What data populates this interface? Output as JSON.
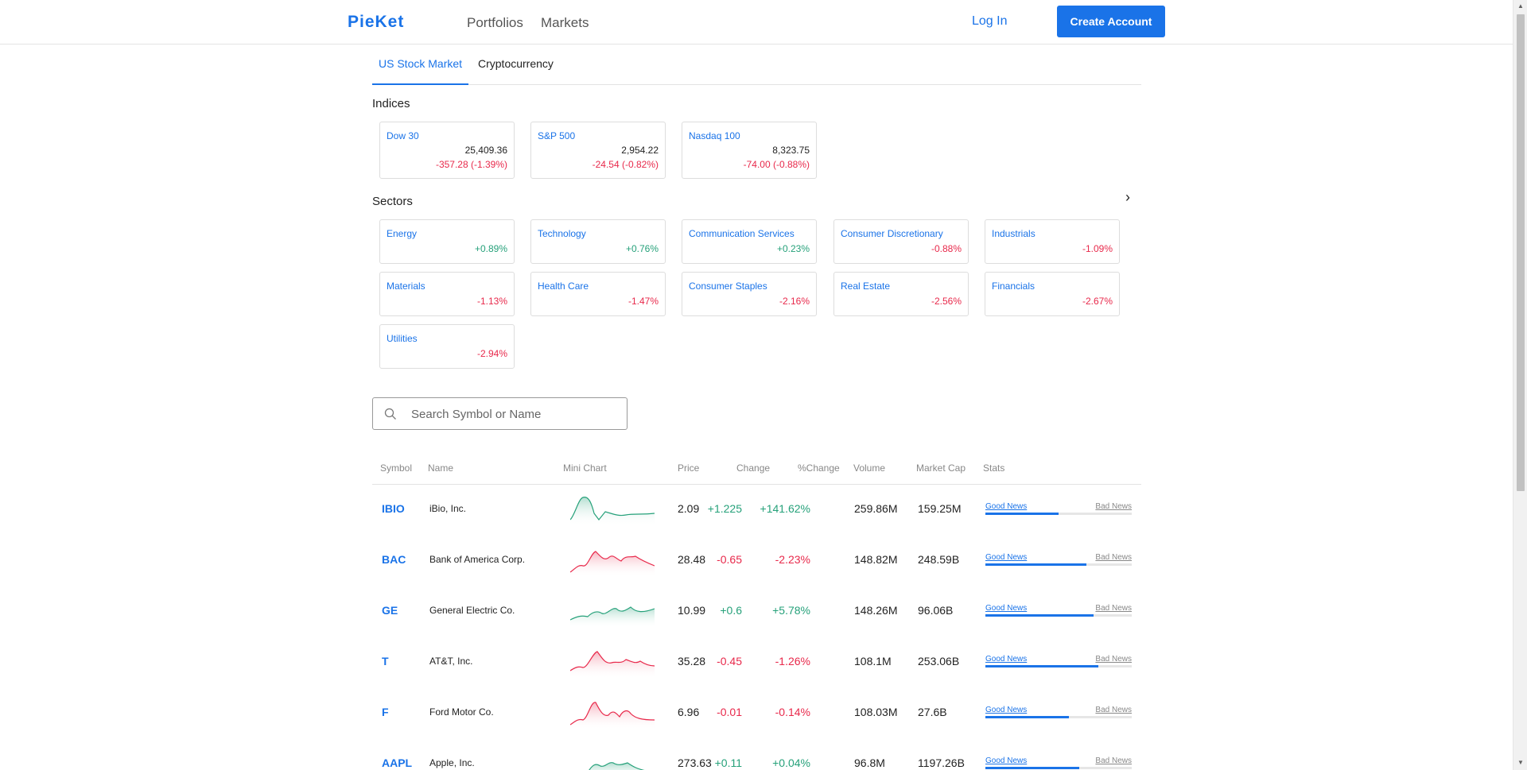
{
  "header": {
    "brand": "PieKet",
    "nav": [
      "Portfolios",
      "Markets"
    ],
    "login": "Log In",
    "create_account": "Create Account"
  },
  "tabs": [
    "US Stock Market",
    "Cryptocurrency"
  ],
  "indices": {
    "title": "Indices",
    "items": [
      {
        "name": "Dow 30",
        "value": "25,409.36",
        "change": "-357.28 (-1.39%)",
        "dir": "neg"
      },
      {
        "name": "S&P 500",
        "value": "2,954.22",
        "change": "-24.54 (-0.82%)",
        "dir": "neg"
      },
      {
        "name": "Nasdaq 100",
        "value": "8,323.75",
        "change": "-74.00 (-0.88%)",
        "dir": "neg"
      }
    ]
  },
  "sectors": {
    "title": "Sectors",
    "items": [
      {
        "name": "Energy",
        "change": "+0.89%",
        "dir": "pos"
      },
      {
        "name": "Technology",
        "change": "+0.76%",
        "dir": "pos"
      },
      {
        "name": "Communication Services",
        "change": "+0.23%",
        "dir": "pos"
      },
      {
        "name": "Consumer Discretionary",
        "change": "-0.88%",
        "dir": "neg"
      },
      {
        "name": "Industrials",
        "change": "-1.09%",
        "dir": "neg"
      },
      {
        "name": "Materials",
        "change": "-1.13%",
        "dir": "neg"
      },
      {
        "name": "Health Care",
        "change": "-1.47%",
        "dir": "neg"
      },
      {
        "name": "Consumer Staples",
        "change": "-2.16%",
        "dir": "neg"
      },
      {
        "name": "Real Estate",
        "change": "-2.56%",
        "dir": "neg"
      },
      {
        "name": "Financials",
        "change": "-2.67%",
        "dir": "neg"
      },
      {
        "name": "Utilities",
        "change": "-2.94%",
        "dir": "neg"
      }
    ]
  },
  "search": {
    "placeholder": "Search Symbol or Name",
    "value": ""
  },
  "table": {
    "columns": [
      "Symbol",
      "Name",
      "Mini Chart",
      "Price",
      "Change",
      "%Change",
      "Volume",
      "Market Cap",
      "Stats"
    ],
    "good_label": "Good News",
    "bad_label": "Bad News",
    "rows": [
      {
        "symbol": "IBIO",
        "name": "iBio, Inc.",
        "price": "2.09",
        "change": "+1.225",
        "pct": "+141.62%",
        "volume": "259.86M",
        "mcap": "159.25M",
        "good_ratio": 0.5,
        "dir": "pos"
      },
      {
        "symbol": "BAC",
        "name": "Bank of America Corp.",
        "price": "28.48",
        "change": "-0.65",
        "pct": "-2.23%",
        "volume": "148.82M",
        "mcap": "248.59B",
        "good_ratio": 0.69,
        "dir": "neg"
      },
      {
        "symbol": "GE",
        "name": "General Electric Co.",
        "price": "10.99",
        "change": "+0.6",
        "pct": "+5.78%",
        "volume": "148.26M",
        "mcap": "96.06B",
        "good_ratio": 0.74,
        "dir": "pos"
      },
      {
        "symbol": "T",
        "name": "AT&T, Inc.",
        "price": "35.28",
        "change": "-0.45",
        "pct": "-1.26%",
        "volume": "108.1M",
        "mcap": "253.06B",
        "good_ratio": 0.77,
        "dir": "neg"
      },
      {
        "symbol": "F",
        "name": "Ford Motor Co.",
        "price": "6.96",
        "change": "-0.01",
        "pct": "-0.14%",
        "volume": "108.03M",
        "mcap": "27.6B",
        "good_ratio": 0.57,
        "dir": "neg"
      },
      {
        "symbol": "AAPL",
        "name": "Apple, Inc.",
        "price": "273.63",
        "change": "+0.11",
        "pct": "+0.04%",
        "volume": "96.8M",
        "mcap": "1197.26B",
        "good_ratio": 0.64,
        "dir": "pos"
      }
    ]
  },
  "colors": {
    "accent": "#1a73e8",
    "positive": "#26a17a",
    "negative": "#e8294b"
  }
}
